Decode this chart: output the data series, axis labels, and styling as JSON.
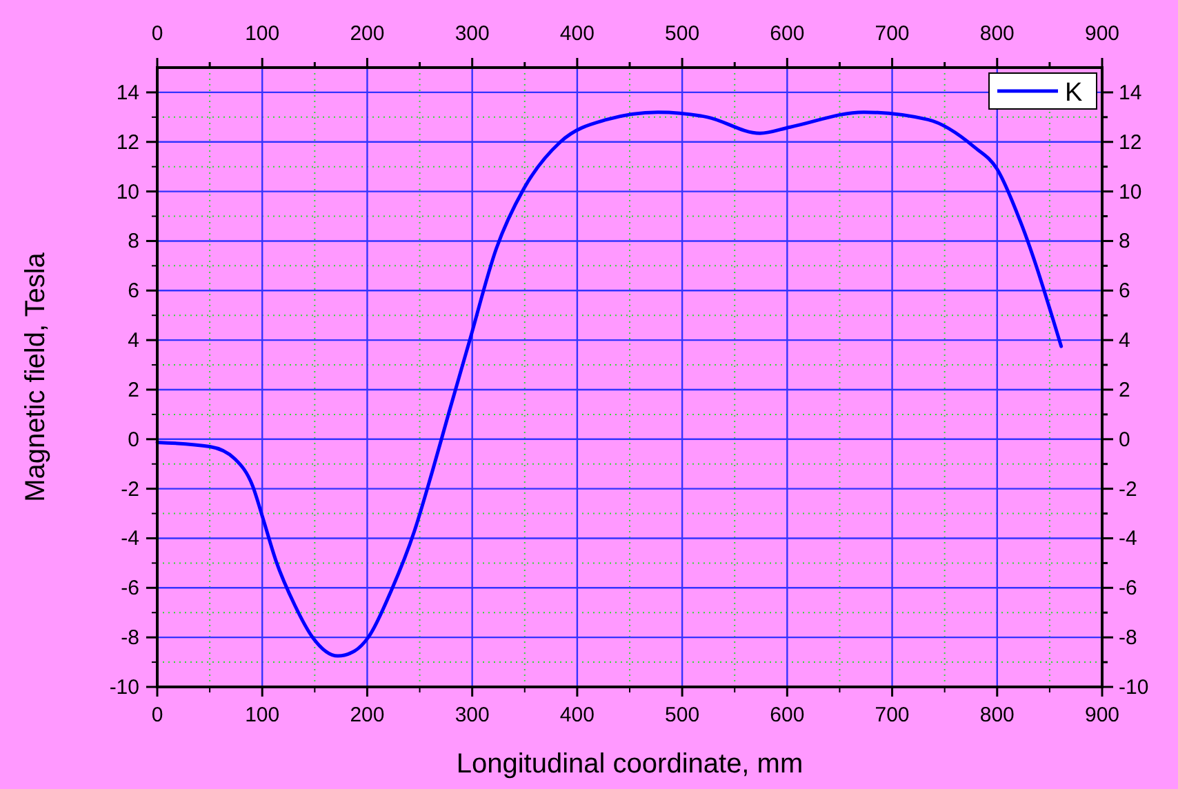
{
  "chart_data": {
    "type": "line",
    "xlabel": "Longitudinal coordinate, mm",
    "ylabel": "Magnetic field, Tesla",
    "x": [
      0,
      50,
      74,
      91,
      100,
      113,
      131,
      148,
      172,
      188,
      201,
      223,
      245,
      262,
      278,
      297,
      323,
      349,
      384,
      428,
      477,
      524,
      574,
      603,
      673,
      734,
      778,
      800,
      822,
      861
    ],
    "series": [
      {
        "name": "K",
        "color": "#0000ff",
        "values": [
          -0.13,
          -0.3,
          -0.8,
          -1.9,
          -3.1,
          -4.9,
          -6.7,
          -8.0,
          -8.75,
          -8.55,
          -8.0,
          -6.1,
          -3.7,
          -1.3,
          1.1,
          3.9,
          7.7,
          10.1,
          12.0,
          12.9,
          13.2,
          13.0,
          12.35,
          12.6,
          13.2,
          12.9,
          11.8,
          10.9,
          8.8,
          3.75
        ]
      }
    ],
    "xlim": [
      0,
      900
    ],
    "xticks": [
      0,
      {
        "value": 50,
        "label": null
      },
      100,
      {
        "value": 150,
        "label": null
      },
      200,
      {
        "value": 250,
        "label": null
      },
      300,
      {
        "value": 350,
        "label": null
      },
      400,
      {
        "value": 450,
        "label": null
      },
      500,
      {
        "value": 550,
        "label": null
      },
      600,
      {
        "value": 650,
        "label": null
      },
      700,
      {
        "value": 750,
        "label": null
      },
      800,
      {
        "value": 850,
        "label": null
      },
      900
    ],
    "x2lim": [
      0,
      900
    ],
    "x2ticks": [
      0,
      {
        "value": 50,
        "label": null
      },
      100,
      {
        "value": 150,
        "label": null
      },
      200,
      {
        "value": 250,
        "label": null
      },
      300,
      {
        "value": 350,
        "label": null
      },
      400,
      {
        "value": 450,
        "label": null
      },
      500,
      {
        "value": 550,
        "label": null
      },
      600,
      {
        "value": 650,
        "label": null
      },
      700,
      {
        "value": 750,
        "label": null
      },
      800,
      {
        "value": 850,
        "label": null
      },
      900
    ],
    "ylim": [
      -10,
      15
    ],
    "yticks": [
      -10,
      {
        "value": -9,
        "label": null
      },
      -8,
      {
        "value": -7,
        "label": null
      },
      -6,
      {
        "value": -5,
        "label": null
      },
      -4,
      {
        "value": -3,
        "label": null
      },
      -2,
      {
        "value": -1,
        "label": null
      },
      0,
      {
        "value": 1,
        "label": null
      },
      2,
      {
        "value": 3,
        "label": null
      },
      4,
      {
        "value": 5,
        "label": null
      },
      6,
      {
        "value": 7,
        "label": null
      },
      8,
      {
        "value": 9,
        "label": null
      },
      10,
      {
        "value": 11,
        "label": null
      },
      12,
      {
        "value": 13,
        "label": null
      },
      14
    ],
    "y2lim": [
      -10,
      15
    ],
    "y2ticks": [
      -10,
      {
        "value": -9,
        "label": null
      },
      -8,
      {
        "value": -7,
        "label": null
      },
      -6,
      {
        "value": -5,
        "label": null
      },
      -4,
      {
        "value": -3,
        "label": null
      },
      -2,
      {
        "value": -1,
        "label": null
      },
      0,
      {
        "value": 1,
        "label": null
      },
      2,
      {
        "value": 3,
        "label": null
      },
      4,
      {
        "value": 5,
        "label": null
      },
      6,
      {
        "value": 7,
        "label": null
      },
      8,
      {
        "value": 9,
        "label": null
      },
      10,
      {
        "value": 11,
        "label": null
      },
      12,
      {
        "value": 13,
        "label": null
      },
      14
    ],
    "grid": true,
    "legend": "top right",
    "marker": "none",
    "line_style": "solid"
  }
}
